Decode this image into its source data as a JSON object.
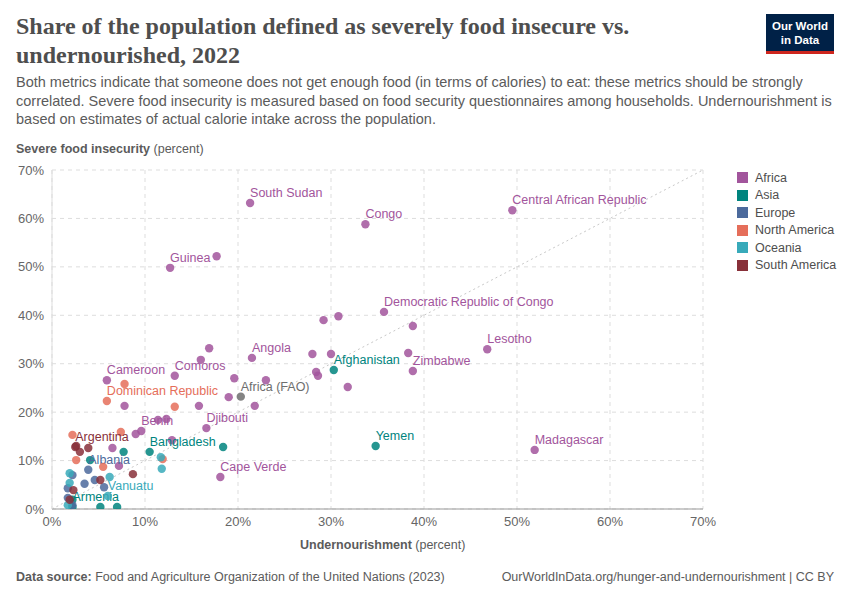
{
  "chart_data": {
    "type": "scatter",
    "title": "Share of the population defined as severely food insecure vs. undernourished, 2022",
    "subtitle": "Both metrics indicate that someone does not get enough food (in terms of calories) to eat: these metrics should be strongly correlated. Severe food insecurity is measured based on food security questionnaires among households. Undernourishment is based on estimates of actual calorie intake across the population.",
    "x_label": "Undernourishment (percent)",
    "y_label": "Severe food insecurity (percent)",
    "source": "Data source: Food and Agriculture Organization of the United Nations (2023)",
    "url": "OurWorldInData.org/hunger-and-undernourishment | CC BY",
    "logo": "Our World in Data",
    "xlim": [
      0,
      70
    ],
    "ylim": [
      0,
      70
    ],
    "xticks": [
      {
        "value": 0,
        "label": "0%"
      },
      {
        "value": 10,
        "label": "10%"
      },
      {
        "value": 20,
        "label": "20%"
      },
      {
        "value": 30,
        "label": "30%"
      },
      {
        "value": 40,
        "label": "40%"
      },
      {
        "value": 50,
        "label": "50%"
      },
      {
        "value": 60,
        "label": "60%"
      },
      {
        "value": 70,
        "label": "70%"
      }
    ],
    "yticks": [
      {
        "value": 0,
        "label": "0%"
      },
      {
        "value": 10,
        "label": "10%"
      },
      {
        "value": 20,
        "label": "20%"
      },
      {
        "value": 30,
        "label": "30%"
      },
      {
        "value": 40,
        "label": "40%"
      },
      {
        "value": 50,
        "label": "50%"
      },
      {
        "value": 60,
        "label": "60%"
      },
      {
        "value": 70,
        "label": "70%"
      }
    ],
    "grid": true,
    "legend": "right",
    "series": [
      {
        "name": "Africa",
        "color": "#a2559c",
        "x": [
          21.3,
          33.7,
          49.5,
          12.7,
          17.7,
          35.7,
          46.8,
          38.8,
          51.9,
          21.5,
          13.2,
          5.9,
          16.6,
          9.6,
          18.1,
          29.2,
          30.8,
          38.8,
          16.9,
          16.0,
          28.0,
          30.0,
          38.3,
          28.4,
          28.6,
          31.8,
          19.6,
          23.0,
          21.8,
          7.8,
          15.8,
          19.0,
          12.3,
          11.4,
          9.0,
          12.9,
          6.5,
          7.2
        ],
        "values": [
          63.2,
          58.8,
          61.7,
          49.8,
          52.2,
          40.7,
          33.0,
          28.5,
          12.2,
          31.2,
          27.5,
          26.6,
          16.7,
          16.1,
          6.6,
          39.0,
          39.8,
          37.8,
          33.2,
          30.8,
          32.0,
          32.0,
          32.2,
          28.3,
          27.5,
          25.2,
          27.0,
          26.6,
          21.3,
          21.3,
          21.3,
          23.1,
          18.6,
          18.4,
          15.5,
          14.2,
          12.6,
          8.9
        ],
        "labels": [
          "South Sudan",
          "Congo",
          "Central African Republic",
          "Guinea",
          null,
          "Democratic Republic of Congo",
          "Lesotho",
          "Zimbabwe",
          "Madagascar",
          "Angola",
          "Comoros",
          "Cameroon",
          "Djibouti",
          "Benin",
          "Cape Verde",
          null,
          null,
          null,
          null,
          null,
          null,
          null,
          null,
          null,
          null,
          null,
          null,
          null,
          null,
          null,
          null,
          null,
          null,
          null,
          null,
          null,
          null,
          null
        ]
      },
      {
        "name": "Asia",
        "color": "#00847e",
        "x": [
          30.3,
          34.8,
          10.5,
          2.2,
          18.4,
          7.7,
          2.2,
          4.1,
          7.0,
          5.2
        ],
        "values": [
          28.7,
          13.0,
          11.8,
          0.4,
          12.8,
          11.8,
          1.9,
          10.1,
          0.4,
          0.4
        ],
        "labels": [
          "Afghanistan",
          "Yemen",
          "Bangladesh",
          "Armenia",
          null,
          null,
          null,
          null,
          null,
          null
        ]
      },
      {
        "name": "Europe",
        "color": "#4c6a9c",
        "x": [
          3.9,
          1.7,
          1.7,
          3.5,
          4.6,
          5.6,
          2.2,
          2.2
        ],
        "values": [
          8.1,
          4.3,
          2.3,
          5.2,
          6.0,
          4.5,
          7.0,
          0.8
        ],
        "labels": [
          "Albania",
          null,
          null,
          null,
          null,
          null,
          null,
          null
        ]
      },
      {
        "name": "North America",
        "color": "#e56e5a",
        "x": [
          5.9,
          7.8,
          13.2,
          11.9,
          2.6,
          2.2,
          7.4,
          5.5
        ],
        "values": [
          22.3,
          25.8,
          21.1,
          10.3,
          10.1,
          15.3,
          15.9,
          8.7
        ],
        "labels": [
          "Dominican Republic",
          null,
          null,
          null,
          null,
          null,
          null,
          null
        ]
      },
      {
        "name": "Oceania",
        "color": "#38aaba",
        "x": [
          6.0,
          11.8,
          11.7,
          6.2,
          1.9,
          1.9,
          1.7
        ],
        "values": [
          2.7,
          8.3,
          10.7,
          6.6,
          7.4,
          5.4,
          0.8
        ],
        "labels": [
          "Vanuatu",
          null,
          null,
          null,
          null,
          null,
          null
        ]
      },
      {
        "name": "South America",
        "color": "#883039",
        "x": [
          2.5,
          2.6,
          3.0,
          3.9,
          5.2,
          8.7,
          2.3,
          1.9
        ],
        "values": [
          12.8,
          13.0,
          11.8,
          12.6,
          6.0,
          7.2,
          3.9,
          1.9
        ],
        "labels": [
          "Argentina",
          null,
          null,
          null,
          null,
          null,
          null,
          null
        ]
      }
    ],
    "annotations": [
      {
        "text": "Africa (FAO)",
        "x": 20.3,
        "y": 23.2,
        "color": "#6e6e6e"
      }
    ]
  }
}
